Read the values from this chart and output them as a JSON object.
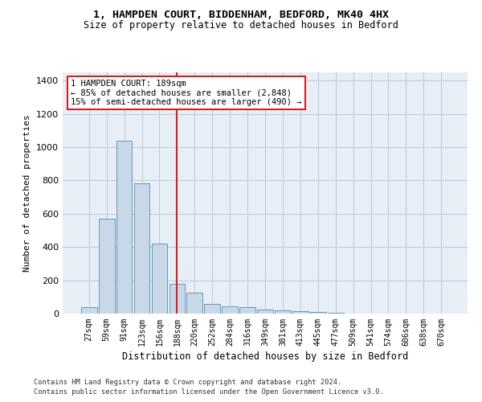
{
  "title1": "1, HAMPDEN COURT, BIDDENHAM, BEDFORD, MK40 4HX",
  "title2": "Size of property relative to detached houses in Bedford",
  "xlabel": "Distribution of detached houses by size in Bedford",
  "ylabel": "Number of detached properties",
  "categories": [
    "27sqm",
    "59sqm",
    "91sqm",
    "123sqm",
    "156sqm",
    "188sqm",
    "220sqm",
    "252sqm",
    "284sqm",
    "316sqm",
    "349sqm",
    "381sqm",
    "413sqm",
    "445sqm",
    "477sqm",
    "509sqm",
    "541sqm",
    "574sqm",
    "606sqm",
    "638sqm",
    "670sqm"
  ],
  "values": [
    40,
    570,
    1040,
    785,
    420,
    180,
    125,
    60,
    45,
    40,
    25,
    20,
    15,
    8,
    5,
    2,
    1,
    0,
    0,
    0,
    0
  ],
  "bar_color": "#c8d8e8",
  "bar_edge_color": "#6699bb",
  "grid_color": "#c0ccdd",
  "background_color": "#e8eef5",
  "vline_x_index": 5,
  "vline_color": "#cc2222",
  "annotation_text": "1 HAMPDEN COURT: 189sqm\n← 85% of detached houses are smaller (2,848)\n15% of semi-detached houses are larger (490) →",
  "annotation_box_color": "#ffffff",
  "annotation_box_edge": "#cc2222",
  "ylim": [
    0,
    1450
  ],
  "footer1": "Contains HM Land Registry data © Crown copyright and database right 2024.",
  "footer2": "Contains public sector information licensed under the Open Government Licence v3.0."
}
